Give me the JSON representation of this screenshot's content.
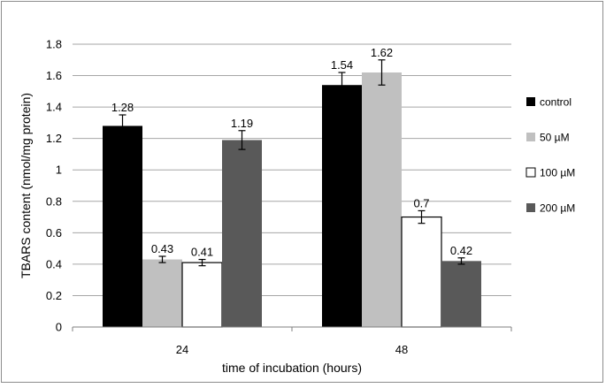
{
  "chart_data": {
    "type": "bar",
    "title": "",
    "xlabel": "time of incubation (hours)",
    "ylabel": "TBARS content (nmol/mg protein)",
    "categories": [
      "24",
      "48"
    ],
    "ylim": [
      0,
      1.8
    ],
    "yticks": [
      "0",
      "0.2",
      "0.4",
      "0.6",
      "0.8",
      "1",
      "1.2",
      "1.4",
      "1.6",
      "1.8"
    ],
    "grid": true,
    "legend_position": "right",
    "series": [
      {
        "name": "control",
        "color": "#000000",
        "values": [
          1.28,
          1.54
        ],
        "errors": [
          0.07,
          0.08
        ],
        "labels": [
          "1.28",
          "1.54"
        ]
      },
      {
        "name": "50 µM",
        "color": "#c0c0c0",
        "values": [
          0.43,
          1.62
        ],
        "errors": [
          0.02,
          0.08
        ],
        "labels": [
          "0.43",
          "1.62"
        ]
      },
      {
        "name": "100 µM",
        "color": "#ffffff",
        "values": [
          0.41,
          0.7
        ],
        "errors": [
          0.02,
          0.04
        ],
        "labels": [
          "0.41",
          "0.7"
        ]
      },
      {
        "name": "200 µM",
        "color": "#595959",
        "values": [
          1.19,
          0.42
        ],
        "errors": [
          0.06,
          0.02
        ],
        "labels": [
          "1.19",
          "0.42"
        ]
      }
    ]
  }
}
